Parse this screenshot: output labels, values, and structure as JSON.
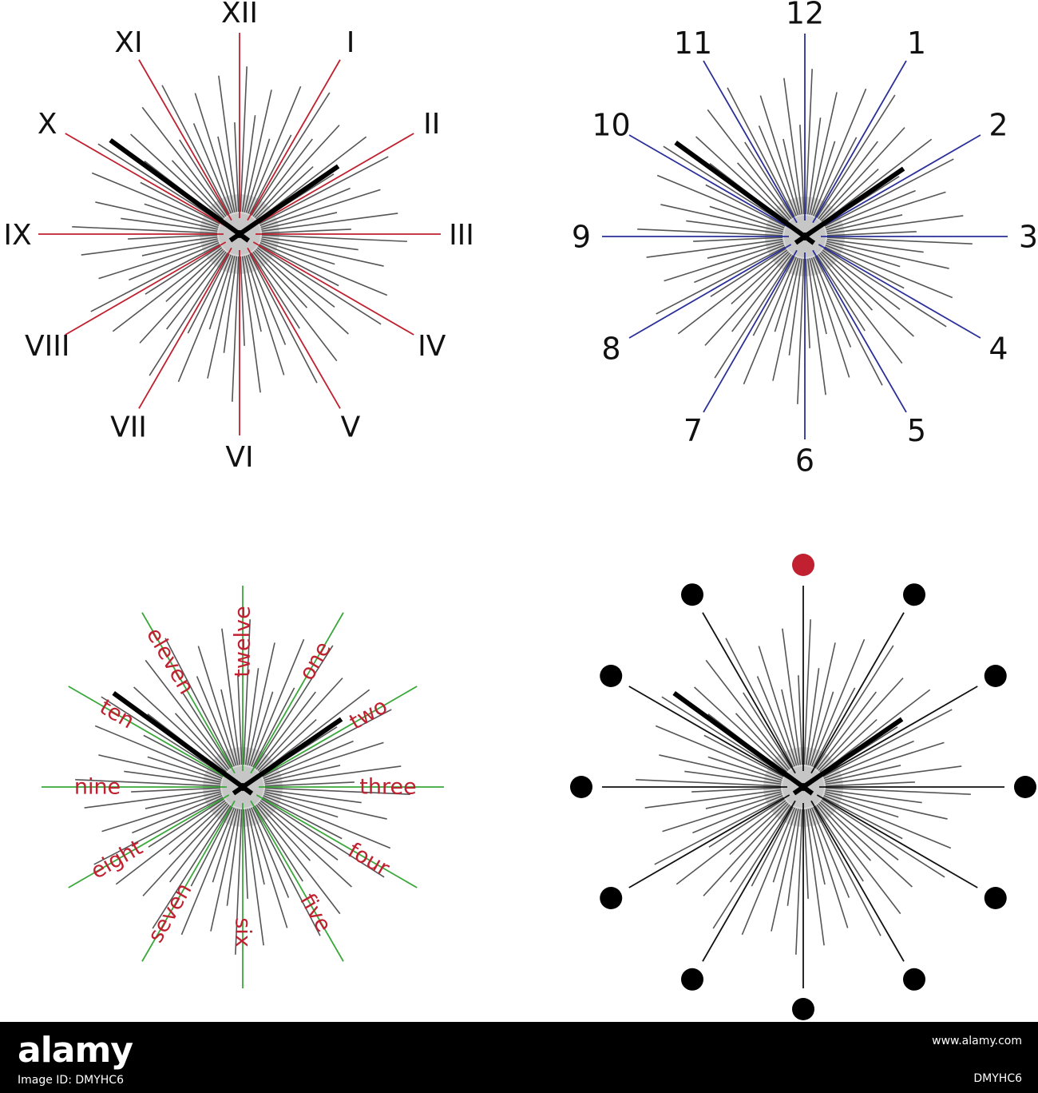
{
  "clocks": [
    {
      "id": "roman",
      "style": "text",
      "accent": "#c0202f",
      "label_color": "#111111",
      "labels": [
        "XII",
        "I",
        "II",
        "III",
        "IV",
        "V",
        "VI",
        "VII",
        "VIII",
        "IX",
        "X",
        "XI"
      ],
      "hour_hand_hours": 1.85,
      "minute_hand_hours": 10.2
    },
    {
      "id": "arabic",
      "style": "text",
      "accent": "#2a2f9a",
      "label_color": "#111111",
      "labels": [
        "12",
        "1",
        "2",
        "3",
        "4",
        "5",
        "6",
        "7",
        "8",
        "9",
        "10",
        "11"
      ],
      "hour_hand_hours": 1.85,
      "minute_hand_hours": 10.2
    },
    {
      "id": "words",
      "style": "radial-text",
      "accent": "#3aa83a",
      "label_color": "#c0202f",
      "labels": [
        "twelve",
        "one",
        "two",
        "three",
        "four",
        "five",
        "six",
        "seven",
        "eight",
        "nine",
        "ten",
        "eleven"
      ],
      "hour_hand_hours": 1.85,
      "minute_hand_hours": 10.2
    },
    {
      "id": "dots",
      "style": "dots",
      "accent": "#111111",
      "label_color": "#111111",
      "twelve_color": "#c0202f",
      "dot_color": "#000000",
      "labels": [],
      "hour_hand_hours": 1.85,
      "minute_hand_hours": 10.2
    }
  ],
  "colors": {
    "minor_tick": "#555555",
    "hub": "#cfcfcf",
    "hand": "#000000"
  },
  "footer": {
    "logo": "alamy",
    "image_id": "Image ID: DMYHC6",
    "url": "www.alamy.com",
    "code": "DMYHC6"
  }
}
